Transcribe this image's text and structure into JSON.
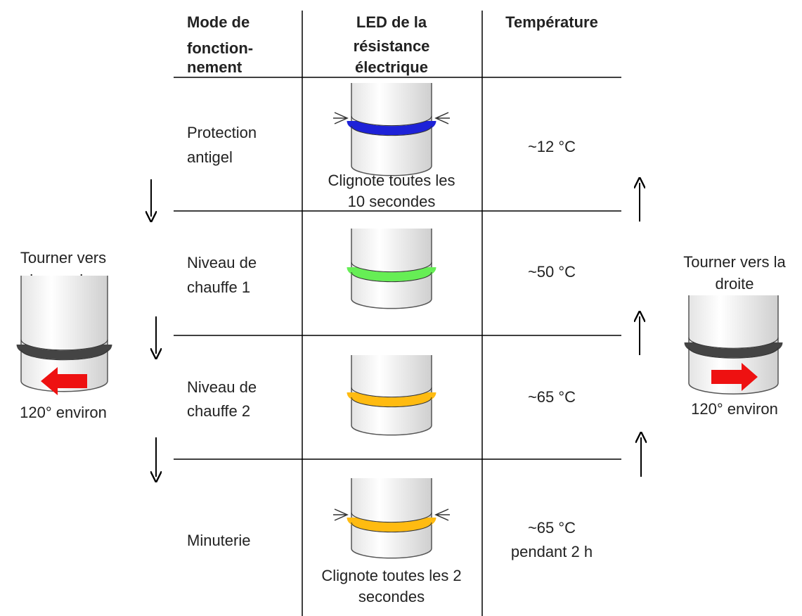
{
  "header": {
    "columns": [
      [
        "Mode de",
        "fonction-",
        "nement"
      ],
      [
        "LED de la",
        "résistance",
        "électrique"
      ],
      [
        "Température"
      ]
    ]
  },
  "rows": [
    {
      "mode": [
        "Protection",
        "antigel"
      ],
      "led_caption": [
        "Clignote toutes les",
        "10 secondes"
      ],
      "temperature": [
        "~12 °C"
      ]
    },
    {
      "mode": [
        "Niveau de",
        "chauffe 1"
      ],
      "temperature": [
        "~50 °C"
      ]
    },
    {
      "mode": [
        "Niveau de",
        "chauffe 2"
      ],
      "temperature": [
        "~65 °C"
      ]
    },
    {
      "mode": [
        "Minuterie"
      ],
      "led_caption": [
        "Clignote toutes les 2",
        "secondes"
      ],
      "temperature": [
        "~65 °C",
        "pendant 2 h"
      ]
    }
  ],
  "left": {
    "label": [
      "Tourner vers",
      "la gauche"
    ],
    "angle": "120° environ"
  },
  "right": {
    "label": [
      "Tourner vers la",
      "droite"
    ],
    "angle": "120° environ"
  }
}
